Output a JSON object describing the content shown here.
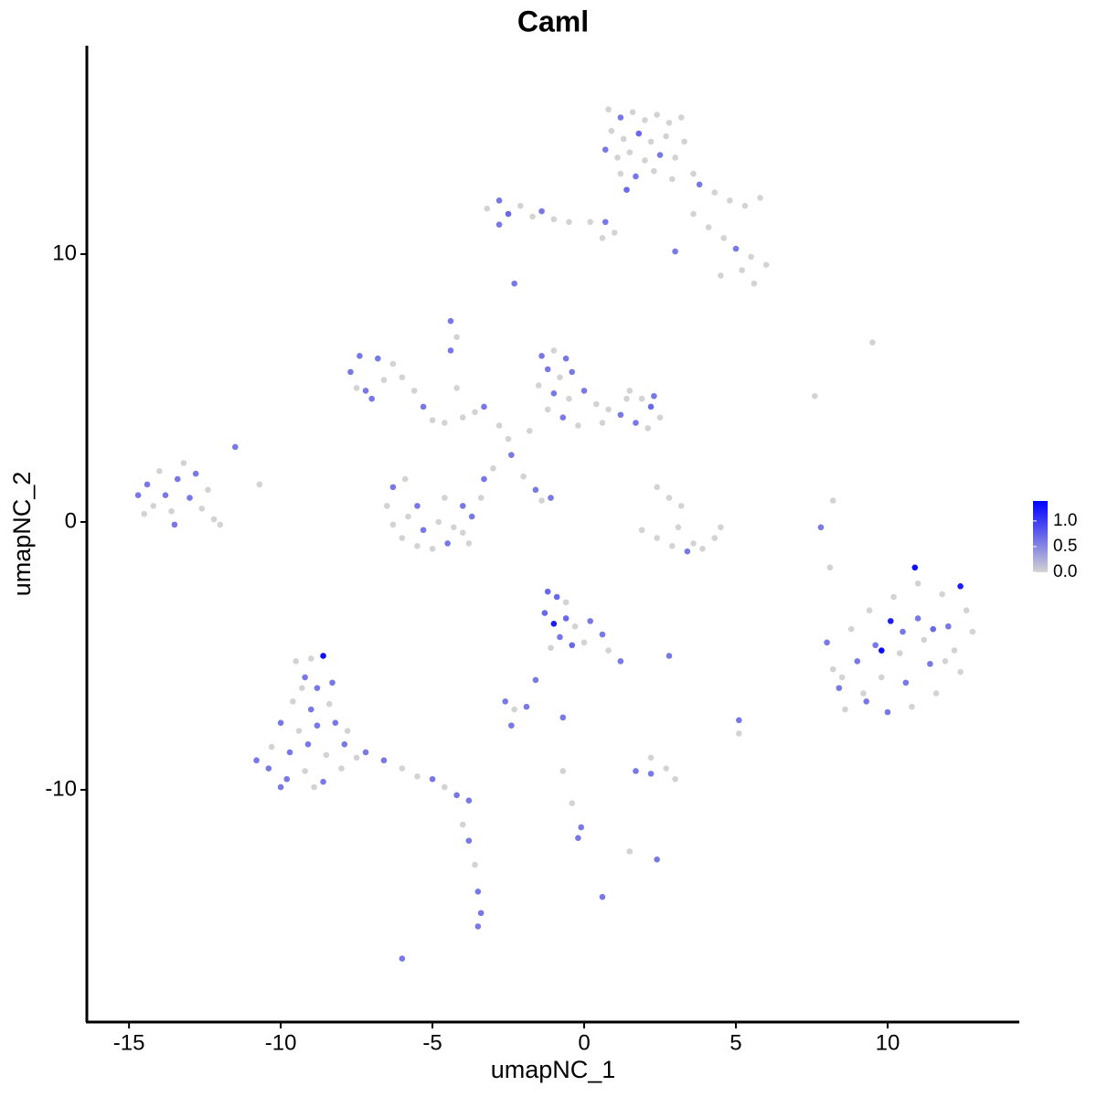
{
  "chart_data": {
    "type": "scatter",
    "title": "Caml",
    "x_label": "umapNC_1",
    "y_label": "umapNC_2",
    "xlim": [
      -16.39,
      14.34
    ],
    "ylim": [
      -18.67,
      17.78
    ],
    "xticks": [
      -15,
      -10,
      -5,
      0,
      5,
      10
    ],
    "yticks": [
      -10,
      0,
      10
    ],
    "color_low": "#d3d3d3",
    "color_high": "#0000ff",
    "colorlim": [
      0,
      1.39
    ],
    "colorticks": [
      {
        "value": 0,
        "label": "0.0"
      },
      {
        "value": 0.5,
        "label": "0.5"
      },
      {
        "value": 1,
        "label": "1.0"
      }
    ],
    "x": [
      0.8,
      1.2,
      1.6,
      2.0,
      2.4,
      2.8,
      3.2,
      0.9,
      1.3,
      1.8,
      2.2,
      2.7,
      3.3,
      0.7,
      1.1,
      1.5,
      2.0,
      2.5,
      3.0,
      1.2,
      1.7,
      2.3,
      2.9,
      3.6,
      1.4,
      3.8,
      4.3,
      4.8,
      5.3,
      5.8,
      3.6,
      4.1,
      4.6,
      5.0,
      5.5,
      6.0,
      5.2,
      4.5,
      5.6,
      3.0,
      -3.2,
      -2.8,
      -2.5,
      -2.1,
      -1.7,
      -1.4,
      -1.0,
      -0.5,
      0.2,
      0.7,
      1.0,
      0.6,
      -2.8,
      -2.3,
      -7.4,
      -7.7,
      -7.5,
      -7.0,
      -6.6,
      -6.3,
      -6.8,
      -7.2,
      -6.0,
      -5.6,
      -5.3,
      -5.0,
      -4.6,
      -4.4,
      -4.0,
      -3.6,
      -3.3,
      -2.8,
      -2.5,
      -2.4,
      -3.0,
      -4.2,
      -1.4,
      -1.0,
      -0.6,
      -1.2,
      -0.8,
      -0.4,
      -1.5,
      -1.0,
      -0.5,
      0.0,
      0.4,
      0.8,
      1.2,
      -1.2,
      -0.7,
      -0.2,
      1.5,
      1.9,
      2.2,
      2.5,
      1.7,
      2.1,
      1.4,
      2.3,
      -1.8,
      0.6,
      -2.0,
      -1.6,
      -1.4,
      -1.1,
      -4.4,
      -4.2,
      -6.3,
      -6.5,
      -6.3,
      -6.0,
      -5.5,
      -5.0,
      -4.5,
      -4.0,
      -3.7,
      -3.4,
      -3.3,
      -5.8,
      -5.3,
      -4.8,
      -4.3,
      -4.0,
      -5.9,
      -5.5,
      -4.6,
      -3.8,
      -14.7,
      -14.4,
      -14.2,
      -14.0,
      -13.8,
      -13.6,
      -13.4,
      -13.2,
      -13.0,
      -12.8,
      -12.6,
      -12.4,
      -12.2,
      -13.5,
      -14.5,
      -12.0,
      -11.5,
      -10.7,
      2.4,
      2.8,
      3.2,
      3.1,
      1.9,
      2.4,
      2.9,
      3.4,
      3.9,
      4.3,
      4.5,
      3.6,
      8.0,
      8.2,
      8.4,
      8.6,
      8.8,
      9.0,
      9.2,
      9.4,
      9.6,
      9.8,
      10.0,
      10.2,
      10.1,
      10.4,
      10.6,
      10.8,
      11.0,
      11.0,
      11.2,
      11.4,
      11.6,
      11.8,
      12.0,
      12.2,
      12.4,
      12.6,
      12.8,
      10.9,
      12.4,
      9.8,
      9.3,
      11.5,
      10.5,
      8.5,
      11.9,
      9.5,
      7.6,
      7.8,
      8.2,
      8.1,
      -9.5,
      -9.0,
      -8.6,
      -9.2,
      -8.8,
      -9.6,
      -9.0,
      -8.4,
      -10.0,
      -9.4,
      -8.8,
      -8.2,
      -10.3,
      -9.7,
      -9.1,
      -8.5,
      -7.9,
      -10.4,
      -9.8,
      -9.2,
      -8.6,
      -8.0,
      -7.5,
      -7.8,
      -7.2,
      -10.8,
      -10.0,
      -8.9,
      -9.3,
      -8.3,
      -6.6,
      -6.0,
      -5.5,
      -5.0,
      -4.6,
      -4.2,
      -3.8,
      -4.0,
      -3.8,
      -3.6,
      -3.5,
      -3.4,
      -3.5,
      -6.0,
      -1.2,
      -0.9,
      -0.6,
      -1.3,
      -1.0,
      -0.6,
      -0.3,
      0.2,
      0.6,
      -0.8,
      -0.4,
      0.0,
      0.8,
      1.2,
      -1.1,
      -1.6,
      -2.6,
      -2.3,
      -1.9,
      -2.4,
      -0.7,
      -0.7,
      -0.4,
      -0.1,
      -0.2,
      0.6,
      1.7,
      2.2,
      2.7,
      2.2,
      2.4,
      2.8,
      5.1,
      1.5,
      3.0,
      5.1
    ],
    "y": [
      15.4,
      15.1,
      15.3,
      15.0,
      15.2,
      14.9,
      15.1,
      14.6,
      14.3,
      14.5,
      14.2,
      14.4,
      14.2,
      13.9,
      13.6,
      13.8,
      13.5,
      13.7,
      13.6,
      13.0,
      12.9,
      13.1,
      12.8,
      13.0,
      12.4,
      12.6,
      12.3,
      12.0,
      11.8,
      12.1,
      11.5,
      11.0,
      10.6,
      10.2,
      9.9,
      9.6,
      9.4,
      9.2,
      8.9,
      10.1,
      11.7,
      12.0,
      11.5,
      11.8,
      11.4,
      11.6,
      11.3,
      11.2,
      11.2,
      11.2,
      10.8,
      10.6,
      11.1,
      8.9,
      6.2,
      5.6,
      5.0,
      4.6,
      5.3,
      5.9,
      6.1,
      4.9,
      5.4,
      4.9,
      4.3,
      3.8,
      3.7,
      6.4,
      3.9,
      4.1,
      4.3,
      3.6,
      3.1,
      2.5,
      2.0,
      5.0,
      6.2,
      6.4,
      6.1,
      5.7,
      5.4,
      5.6,
      5.1,
      4.8,
      4.6,
      4.9,
      4.4,
      4.2,
      4.0,
      4.2,
      3.9,
      3.6,
      4.9,
      4.6,
      4.3,
      3.9,
      3.7,
      3.5,
      4.6,
      4.7,
      3.4,
      3.7,
      1.7,
      1.2,
      0.8,
      0.9,
      7.5,
      6.9,
      1.3,
      0.6,
      -0.1,
      -0.6,
      -0.9,
      -1.0,
      -0.8,
      -0.4,
      0.2,
      0.9,
      1.6,
      0.2,
      -0.3,
      0.0,
      -0.2,
      0.6,
      1.6,
      0.6,
      0.9,
      -0.8,
      1.0,
      1.4,
      0.6,
      1.9,
      1.0,
      0.4,
      1.6,
      2.2,
      0.9,
      1.8,
      0.5,
      1.2,
      0.1,
      -0.1,
      0.3,
      -0.1,
      2.8,
      1.4,
      1.3,
      0.9,
      0.6,
      -0.2,
      -0.3,
      -0.6,
      -0.9,
      -1.1,
      -1.0,
      -0.6,
      -0.2,
      -0.8,
      -4.5,
      -5.5,
      -6.2,
      -7.0,
      -4.0,
      -5.2,
      -6.4,
      -3.3,
      -4.6,
      -5.8,
      -7.1,
      -2.8,
      -3.7,
      -4.9,
      -6.0,
      -6.9,
      -2.3,
      -3.6,
      -4.4,
      -5.3,
      -6.4,
      -2.7,
      -3.9,
      -4.8,
      -5.6,
      -3.3,
      -4.1,
      -1.7,
      -2.4,
      -4.8,
      -6.7,
      -4.0,
      -4.1,
      -5.8,
      -5.2,
      6.7,
      4.7,
      -0.2,
      0.8,
      -1.7,
      -5.2,
      -5.1,
      -5.0,
      -5.8,
      -6.2,
      -6.7,
      -7.0,
      -6.8,
      -7.5,
      -7.8,
      -7.6,
      -7.5,
      -8.4,
      -8.6,
      -8.3,
      -8.7,
      -8.3,
      -9.2,
      -9.6,
      -9.3,
      -9.7,
      -9.2,
      -8.8,
      -7.8,
      -8.6,
      -8.9,
      -9.9,
      -9.9,
      -6.2,
      -6.0,
      -8.9,
      -9.2,
      -9.5,
      -9.6,
      -9.9,
      -10.2,
      -10.4,
      -11.3,
      -11.9,
      -12.8,
      -13.8,
      -14.6,
      -15.1,
      -16.3,
      -2.6,
      -2.8,
      -3.0,
      -3.4,
      -3.8,
      -3.6,
      -3.9,
      -3.7,
      -4.2,
      -4.3,
      -4.6,
      -4.5,
      -4.8,
      -5.2,
      -4.7,
      -5.9,
      -6.7,
      -7.0,
      -6.9,
      -7.6,
      -7.3,
      -9.3,
      -10.5,
      -11.4,
      -11.8,
      -14.0,
      -9.3,
      -9.4,
      -9.2,
      -8.8,
      -12.6,
      -5.0,
      -7.4,
      -12.3,
      -9.6,
      -7.9
    ],
    "values": [
      0,
      0.6,
      0,
      0,
      0,
      0,
      0,
      0,
      0,
      0.7,
      0,
      0,
      0,
      0.6,
      0,
      0,
      0,
      0.6,
      0,
      0,
      0.6,
      0,
      0,
      0,
      0.7,
      0.6,
      0,
      0,
      0,
      0,
      0,
      0,
      0,
      0.6,
      0,
      0,
      0,
      0,
      0,
      0.6,
      0,
      0.6,
      0.7,
      0,
      0,
      0.6,
      0,
      0,
      0,
      0.6,
      0,
      0,
      0.6,
      0.6,
      0.6,
      0.6,
      0,
      0.6,
      0,
      0,
      0.6,
      0.6,
      0,
      0,
      0.6,
      0,
      0,
      0.6,
      0,
      0,
      0.6,
      0,
      0,
      0.6,
      0,
      0,
      0.6,
      0,
      0.6,
      0.6,
      0,
      0.6,
      0,
      0.6,
      0,
      0.6,
      0,
      0,
      0.6,
      0,
      0.6,
      0,
      0,
      0,
      0.7,
      0,
      0.6,
      0,
      0,
      0.6,
      0,
      0,
      0,
      0.6,
      0,
      0.6,
      0.6,
      0,
      0.6,
      0,
      0,
      0,
      0,
      0,
      0.6,
      0,
      0.6,
      0,
      0.6,
      0,
      0.6,
      0,
      0,
      0.6,
      0,
      0.6,
      0,
      0,
      0.6,
      0.6,
      0,
      0,
      0.6,
      0,
      0.6,
      0,
      0.6,
      0.6,
      0,
      0,
      0,
      0.6,
      0,
      0,
      0.6,
      0,
      0,
      0,
      0,
      0,
      0,
      0,
      0,
      0.6,
      0,
      0,
      0,
      0,
      0.6,
      0,
      0.6,
      0,
      0,
      0.6,
      0,
      0,
      0.6,
      0,
      0.6,
      0,
      1.2,
      0,
      0.6,
      0,
      0,
      0.6,
      0,
      0.6,
      0,
      0,
      0.6,
      0,
      0,
      0,
      0,
      1.3,
      1.2,
      1.3,
      0.6,
      0.7,
      0.6,
      0,
      0,
      0,
      0,
      0.6,
      0,
      0,
      0,
      0,
      1.3,
      0.6,
      0.6,
      0,
      0.6,
      0,
      0.6,
      0,
      0.6,
      0.6,
      0,
      0.6,
      0.6,
      0,
      0.6,
      0.6,
      0.6,
      0,
      0.6,
      0,
      0,
      0,
      0.6,
      0.6,
      0.6,
      0,
      0,
      0.6,
      0.6,
      0,
      0,
      0.6,
      0,
      0.6,
      0.6,
      0,
      0.6,
      0,
      0.6,
      0.6,
      0.6,
      0.6,
      0.7,
      0.7,
      0,
      0.7,
      1.2,
      0.7,
      0,
      0.6,
      0.6,
      0.6,
      0.7,
      0,
      0,
      0.6,
      0,
      0.6,
      0.6,
      0,
      0.6,
      0.6,
      0.6,
      0,
      0,
      0.6,
      0.6,
      0.6,
      0.6,
      0.6,
      0,
      0,
      0.6,
      0.6,
      0.6,
      0,
      0,
      0
    ]
  }
}
